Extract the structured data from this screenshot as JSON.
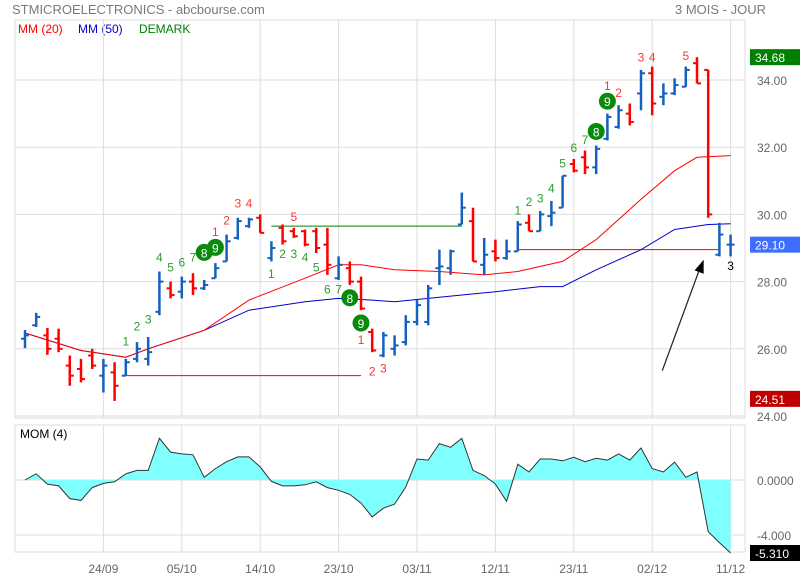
{
  "header": {
    "title": "STMICROELECTRONICS - abcbourse.com",
    "period": "3 MOIS - JOUR"
  },
  "legend": [
    {
      "label": "MM (20)",
      "color": "#ff0000"
    },
    {
      "label": "MM (50)",
      "color": "#0000cc"
    },
    {
      "label": "DEMARK",
      "color": "#008000"
    }
  ],
  "chart_data": [
    {
      "type": "ohlc",
      "title": "STMICROELECTRONICS",
      "ylim": [
        24,
        35.3
      ],
      "y_ticks": [
        "24.00",
        "26.00",
        "28.00",
        "30.00",
        "32.00",
        "34.00"
      ],
      "x_ticks": [
        {
          "bar": 7,
          "label": "24/09"
        },
        {
          "bar": 14,
          "label": "05/10"
        },
        {
          "bar": 21,
          "label": "14/10"
        },
        {
          "bar": 28,
          "label": "23/10"
        },
        {
          "bar": 35,
          "label": "03/11"
        },
        {
          "bar": 42,
          "label": "12/11"
        },
        {
          "bar": 49,
          "label": "23/11"
        },
        {
          "bar": 56,
          "label": "02/12"
        },
        {
          "bar": 63,
          "label": "11/12"
        }
      ],
      "grid": true,
      "bars_ohlc": [
        [
          26.3,
          26.56,
          26.02,
          26.4
        ],
        [
          26.7,
          27.07,
          26.65,
          26.95
        ],
        [
          26.4,
          26.62,
          25.82,
          26.0
        ],
        [
          26.3,
          26.6,
          25.9,
          26.0
        ],
        [
          25.5,
          25.8,
          24.9,
          25.2
        ],
        [
          25.4,
          25.7,
          25.0,
          25.1
        ],
        [
          25.8,
          26.0,
          25.4,
          25.5
        ],
        [
          25.2,
          25.7,
          24.7,
          25.5
        ],
        [
          25.3,
          25.6,
          24.45,
          24.9
        ],
        [
          25.2,
          25.7,
          25.2,
          25.6
        ],
        [
          25.7,
          26.2,
          25.6,
          26.0
        ],
        [
          25.7,
          26.35,
          25.5,
          25.9
        ],
        [
          27.1,
          28.3,
          27.0,
          28.0
        ],
        [
          27.8,
          28.0,
          27.5,
          27.6
        ],
        [
          27.7,
          28.15,
          27.5,
          28.0
        ],
        [
          28.0,
          28.25,
          27.6,
          27.8
        ],
        [
          27.8,
          28.05,
          27.75,
          27.9
        ],
        [
          28.1,
          28.55,
          28.1,
          28.4
        ],
        [
          28.6,
          29.4,
          28.6,
          29.2
        ],
        [
          29.3,
          29.9,
          29.25,
          29.8
        ],
        [
          29.65,
          29.9,
          29.6,
          29.85
        ],
        [
          29.9,
          30.0,
          29.45,
          29.45
        ],
        [
          28.7,
          29.2,
          28.6,
          29.0
        ],
        [
          29.6,
          29.7,
          29.1,
          29.2
        ],
        [
          29.5,
          29.6,
          29.3,
          29.35
        ],
        [
          29.5,
          29.55,
          29.05,
          29.1
        ],
        [
          29.5,
          29.6,
          28.85,
          29.0
        ],
        [
          29.1,
          29.6,
          28.2,
          28.5
        ],
        [
          28.1,
          28.75,
          28.05,
          28.5
        ],
        [
          28.4,
          28.6,
          27.9,
          28.0
        ],
        [
          28.0,
          28.15,
          27.15,
          27.2
        ],
        [
          26.5,
          26.6,
          25.9,
          25.95
        ],
        [
          25.8,
          26.5,
          25.75,
          26.4
        ],
        [
          26.0,
          26.4,
          25.8,
          26.1
        ],
        [
          26.2,
          27.0,
          26.1,
          26.8
        ],
        [
          26.8,
          27.45,
          26.7,
          27.3
        ],
        [
          26.8,
          27.9,
          26.7,
          27.8
        ],
        [
          28.4,
          28.95,
          27.9,
          28.45
        ],
        [
          28.4,
          28.95,
          28.2,
          28.9
        ],
        [
          29.7,
          30.65,
          29.7,
          30.2
        ],
        [
          29.8,
          30.2,
          28.6,
          28.6
        ],
        [
          28.5,
          29.3,
          28.2,
          28.8
        ],
        [
          28.9,
          29.25,
          28.6,
          28.7
        ],
        [
          28.7,
          29.25,
          28.65,
          28.9
        ],
        [
          28.9,
          29.8,
          28.9,
          29.7
        ],
        [
          29.75,
          30.0,
          29.5,
          29.5
        ],
        [
          29.5,
          30.1,
          29.5,
          30.0
        ],
        [
          29.95,
          30.4,
          29.65,
          30.05
        ],
        [
          30.2,
          31.15,
          30.2,
          31.15
        ],
        [
          31.5,
          31.65,
          31.25,
          31.3
        ],
        [
          31.7,
          31.9,
          31.2,
          31.4
        ],
        [
          31.4,
          32.05,
          31.2,
          31.95
        ],
        [
          32.25,
          33.0,
          32.2,
          32.9
        ],
        [
          32.6,
          33.25,
          32.55,
          33.1
        ],
        [
          33.0,
          33.3,
          32.65,
          32.75
        ],
        [
          33.6,
          34.3,
          33.1,
          34.2
        ],
        [
          34.2,
          34.4,
          32.95,
          33.3
        ],
        [
          33.5,
          33.9,
          33.25,
          33.6
        ],
        [
          33.6,
          34.05,
          33.55,
          33.85
        ],
        [
          33.8,
          34.4,
          33.8,
          34.3
        ],
        [
          34.5,
          34.68,
          33.9,
          33.9
        ],
        [
          34.3,
          34.3,
          29.9,
          30.0
        ],
        [
          28.8,
          29.75,
          28.75,
          29.4
        ],
        [
          29.1,
          29.4,
          28.75,
          29.1
        ]
      ],
      "up_color": "#1560bd",
      "down_color": "#ff0000",
      "mm20": [
        [
          0,
          26.47
        ],
        [
          5,
          25.95
        ],
        [
          9,
          25.75
        ],
        [
          11,
          26.0
        ],
        [
          16,
          26.55
        ],
        [
          20,
          27.45
        ],
        [
          25,
          28.1
        ],
        [
          28,
          28.5
        ],
        [
          30,
          28.5
        ],
        [
          33,
          28.35
        ],
        [
          37,
          28.3
        ],
        [
          41,
          28.2
        ],
        [
          44,
          28.3
        ],
        [
          48,
          28.6
        ],
        [
          51,
          29.25
        ],
        [
          55,
          30.45
        ],
        [
          58,
          31.3
        ],
        [
          60,
          31.7
        ],
        [
          63,
          31.75
        ]
      ],
      "mm50": [
        [
          0,
          26.47
        ],
        [
          5,
          25.95
        ],
        [
          9,
          25.75
        ],
        [
          11,
          26.0
        ],
        [
          16,
          26.55
        ],
        [
          20,
          27.15
        ],
        [
          25,
          27.4
        ],
        [
          28,
          27.5
        ],
        [
          31,
          27.45
        ],
        [
          33,
          27.4
        ],
        [
          36,
          27.5
        ],
        [
          39,
          27.6
        ],
        [
          42,
          27.7
        ],
        [
          46,
          27.85
        ],
        [
          48,
          27.85
        ],
        [
          51,
          28.35
        ],
        [
          55,
          28.95
        ],
        [
          58,
          29.55
        ],
        [
          61,
          29.7
        ],
        [
          63,
          29.72
        ]
      ],
      "demark": [
        {
          "bar": 9,
          "t": "1",
          "c": "g",
          "p": 26.1
        },
        {
          "bar": 10,
          "t": "2",
          "c": "g",
          "p": 26.55
        },
        {
          "bar": 11,
          "t": "3",
          "c": "g",
          "p": 26.75
        },
        {
          "bar": 12,
          "t": "4",
          "c": "g",
          "p": 28.6
        },
        {
          "bar": 13,
          "t": "5",
          "c": "g",
          "p": 28.3
        },
        {
          "bar": 14,
          "t": "6",
          "c": "g",
          "p": 28.45
        },
        {
          "bar": 15,
          "t": "7",
          "c": "g",
          "p": 28.6
        },
        {
          "bar": 16,
          "t": "8",
          "c": "g",
          "p": 28.75,
          "circle": true
        },
        {
          "bar": 17,
          "t": "9",
          "c": "g",
          "p": 28.9,
          "circle": true
        },
        {
          "bar": 17,
          "t": "1",
          "c": "r",
          "p": 29.35
        },
        {
          "bar": 18,
          "t": "2",
          "c": "r",
          "p": 29.7
        },
        {
          "bar": 19,
          "t": "3",
          "c": "r",
          "p": 30.2
        },
        {
          "bar": 20,
          "t": "4",
          "c": "r",
          "p": 30.2
        },
        {
          "bar": 22,
          "t": "1",
          "c": "g",
          "p": 28.1
        },
        {
          "bar": 23,
          "t": "2",
          "c": "g",
          "p": 28.7
        },
        {
          "bar": 24,
          "t": "3",
          "c": "g",
          "p": 28.7
        },
        {
          "bar": 25,
          "t": "4",
          "c": "g",
          "p": 28.6
        },
        {
          "bar": 26,
          "t": "5",
          "c": "g",
          "p": 28.3
        },
        {
          "bar": 24,
          "t": "5",
          "c": "r",
          "p": 29.8
        },
        {
          "bar": 27,
          "t": "6",
          "c": "g",
          "p": 27.65
        },
        {
          "bar": 28,
          "t": "7",
          "c": "g",
          "p": 27.65
        },
        {
          "bar": 29,
          "t": "8",
          "c": "g",
          "p": 27.4,
          "circle": true
        },
        {
          "bar": 30,
          "t": "9",
          "c": "g",
          "p": 26.65,
          "circle": true
        },
        {
          "bar": 30,
          "t": "1",
          "c": "r",
          "p": 26.15
        },
        {
          "bar": 31,
          "t": "2",
          "c": "r",
          "p": 25.2
        },
        {
          "bar": 32,
          "t": "3",
          "c": "r",
          "p": 25.3
        },
        {
          "bar": 44,
          "t": "1",
          "c": "g",
          "p": 30.0
        },
        {
          "bar": 45,
          "t": "2",
          "c": "g",
          "p": 30.25
        },
        {
          "bar": 46,
          "t": "3",
          "c": "g",
          "p": 30.35
        },
        {
          "bar": 47,
          "t": "4",
          "c": "g",
          "p": 30.65
        },
        {
          "bar": 48,
          "t": "5",
          "c": "g",
          "p": 31.4
        },
        {
          "bar": 49,
          "t": "6",
          "c": "g",
          "p": 31.85
        },
        {
          "bar": 50,
          "t": "7",
          "c": "g",
          "p": 32.1
        },
        {
          "bar": 51,
          "t": "8",
          "c": "g",
          "p": 32.35,
          "circle": true
        },
        {
          "bar": 52,
          "t": "9",
          "c": "g",
          "p": 33.25,
          "circle": true
        },
        {
          "bar": 52,
          "t": "1",
          "c": "r",
          "p": 33.7
        },
        {
          "bar": 53,
          "t": "2",
          "c": "r",
          "p": 33.5
        },
        {
          "bar": 55,
          "t": "3",
          "c": "r",
          "p": 34.55
        },
        {
          "bar": 56,
          "t": "4",
          "c": "r",
          "p": 34.55
        },
        {
          "bar": 59,
          "t": "5",
          "c": "r",
          "p": 34.6
        },
        {
          "bar": 63,
          "t": "3",
          "c": "k",
          "p": 28.35
        }
      ],
      "levels": [
        {
          "from": 22,
          "to": 39,
          "value": 29.65,
          "color": "#008000"
        },
        {
          "from": 9,
          "to": 30,
          "value": 25.2,
          "color": "#ff0000"
        },
        {
          "from": 44,
          "to": 62,
          "value": 28.95,
          "color": "#ff0000"
        }
      ],
      "price_tags": [
        {
          "label": "34.68",
          "value": 34.68,
          "color": "#008000"
        },
        {
          "label": "29.10",
          "value": 29.1,
          "color": "#3d6eff"
        },
        {
          "label": "24.51",
          "value": 24.51,
          "color": "#c00000"
        }
      ],
      "arrow": {
        "from_bar": 56.9,
        "from_value": 25.35,
        "to_bar": 60.6,
        "to_value": 28.65
      }
    },
    {
      "type": "area",
      "title": "MOM (4)",
      "ylim": [
        -5.4,
        4.0
      ],
      "y_ticks": [
        "0.0000",
        "-4.000"
      ],
      "last_tag": "-5.310",
      "fill": "#80ffff",
      "values": [
        0,
        0.45,
        -0.3,
        -0.43,
        -1.35,
        -1.48,
        -0.55,
        -0.25,
        -0.13,
        0.45,
        0.7,
        0.7,
        3.03,
        2.03,
        1.9,
        1.83,
        0.2,
        0.83,
        1.33,
        1.68,
        1.68,
        0.95,
        -0.1,
        -0.43,
        -0.43,
        -0.35,
        -0.13,
        -0.55,
        -0.75,
        -1.05,
        -1.68,
        -2.68,
        -2.05,
        -1.75,
        -0.5,
        1.53,
        1.45,
        2.65,
        2.38,
        3.03,
        0.7,
        0.33,
        -0.3,
        -1.55,
        1.15,
        0.58,
        1.53,
        1.53,
        1.4,
        1.65,
        1.33,
        1.58,
        1.45,
        1.9,
        1.45,
        2.33,
        0.83,
        0.58,
        1.3,
        0.2,
        0.58,
        -3.75,
        -4.55,
        -5.31
      ]
    }
  ]
}
